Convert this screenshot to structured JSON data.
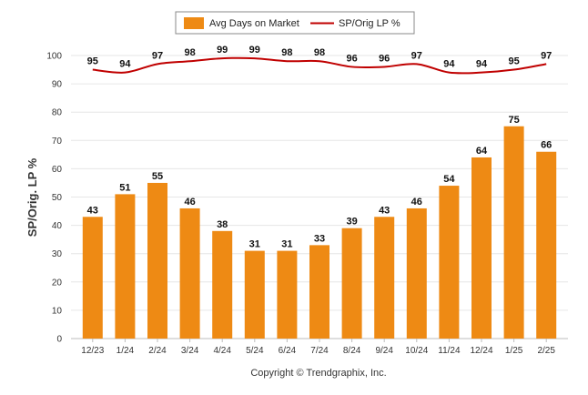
{
  "chart_data": {
    "type": "bar",
    "categories": [
      "12/23",
      "1/24",
      "2/24",
      "3/24",
      "4/24",
      "5/24",
      "6/24",
      "7/24",
      "8/24",
      "9/24",
      "10/24",
      "11/24",
      "12/24",
      "1/25",
      "2/25"
    ],
    "series": [
      {
        "name": "Avg Days on Market",
        "kind": "bar",
        "color": "#ee8a14",
        "values": [
          43,
          51,
          55,
          46,
          38,
          31,
          31,
          33,
          39,
          43,
          46,
          54,
          64,
          75,
          66
        ]
      },
      {
        "name": "SP/Orig LP %",
        "kind": "line",
        "color": "#c00000",
        "values": [
          95,
          94,
          97,
          98,
          99,
          99,
          98,
          98,
          96,
          96,
          97,
          94,
          94,
          95,
          97
        ]
      }
    ],
    "ylabel": "SP/Orig. LP %",
    "ylim": [
      0,
      100
    ],
    "yticks": [
      0,
      10,
      20,
      30,
      40,
      50,
      60,
      70,
      80,
      90,
      100
    ],
    "grid": true,
    "legend": {
      "placement": "top-center"
    }
  },
  "credit": "Copyright © Trendgraphix, Inc."
}
